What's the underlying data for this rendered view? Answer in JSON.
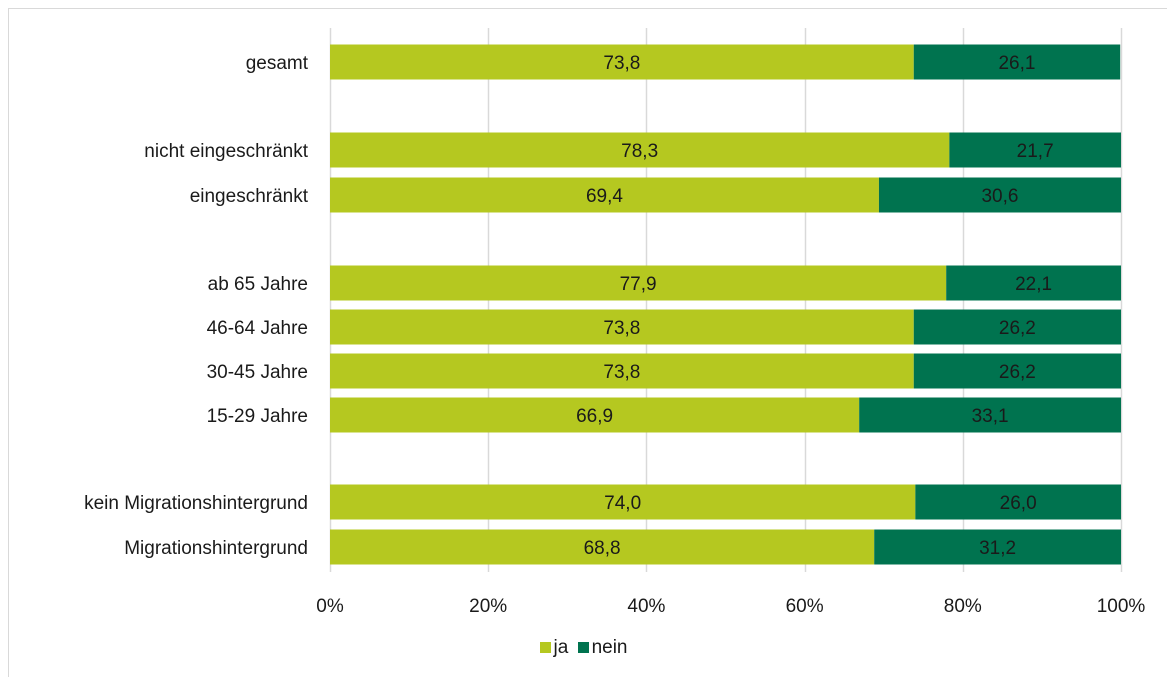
{
  "chart_data": {
    "type": "bar",
    "orientation": "horizontal",
    "stacked": true,
    "categories": [
      "gesamt",
      "nicht eingeschränkt",
      "eingeschränkt",
      "ab 65 Jahre",
      "46-64 Jahre",
      "30-45 Jahre",
      "15-29 Jahre",
      "kein Migrationshintergrund",
      "Migrationshintergrund"
    ],
    "series": [
      {
        "name": "ja",
        "color": "#b5c820",
        "values": [
          73.8,
          78.3,
          69.4,
          77.9,
          73.8,
          73.8,
          66.9,
          74.0,
          68.8
        ],
        "labels": [
          "73,8",
          "78,3",
          "69,4",
          "77,9",
          "73,8",
          "73,8",
          "66,9",
          "74,0",
          "68,8"
        ]
      },
      {
        "name": "nein",
        "color": "#00734f",
        "values": [
          26.1,
          21.7,
          30.6,
          22.1,
          26.2,
          26.2,
          33.1,
          26.0,
          31.2
        ],
        "labels": [
          "26,1",
          "21,7",
          "30,6",
          "22,1",
          "26,2",
          "26,2",
          "33,1",
          "26,0",
          "31,2"
        ]
      }
    ],
    "x_ticks": [
      "0%",
      "20%",
      "40%",
      "60%",
      "80%",
      "100%"
    ],
    "xlim": [
      0,
      100
    ],
    "grid": true,
    "legend_position": "bottom",
    "title": "",
    "xlabel": "",
    "ylabel": ""
  },
  "legend": {
    "items": [
      {
        "label": "ja"
      },
      {
        "label": "nein"
      }
    ]
  }
}
